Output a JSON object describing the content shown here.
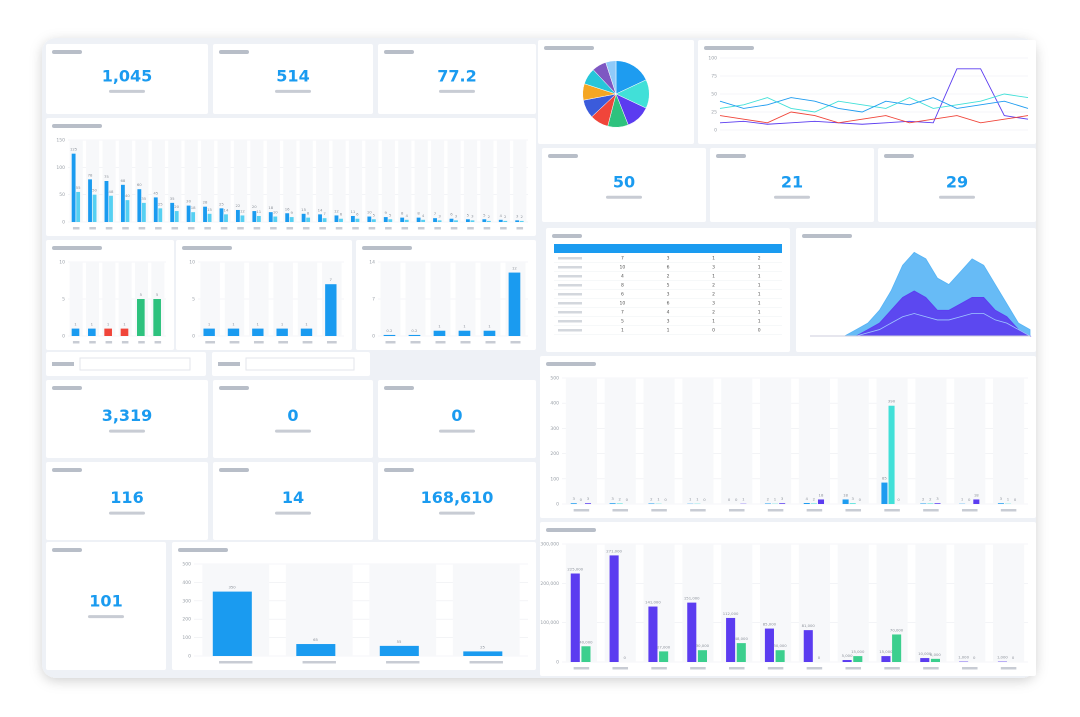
{
  "kpis": [
    "1,045",
    "514",
    "77.2",
    "50",
    "21",
    "29",
    "3,319",
    "0",
    "0",
    "116",
    "14",
    "168,610",
    "101"
  ],
  "charts": {
    "wide": {
      "type": "bar",
      "ylim": [
        0,
        150
      ],
      "yticks": [
        0,
        50,
        100,
        150
      ],
      "series": [
        {
          "color": "#1a9bf0",
          "values": [
            125,
            78,
            75,
            68,
            60,
            45,
            35,
            30,
            28,
            25,
            22,
            20,
            18,
            16,
            15,
            14,
            12,
            11,
            10,
            9,
            8,
            8,
            7,
            6,
            5,
            5,
            4,
            3
          ]
        },
        {
          "color": "#56d0f2",
          "values": [
            55,
            50,
            48,
            40,
            35,
            25,
            20,
            18,
            15,
            14,
            12,
            11,
            10,
            9,
            8,
            7,
            6,
            6,
            5,
            5,
            4,
            4,
            3,
            3,
            3,
            2,
            2,
            2
          ]
        }
      ]
    },
    "smallA": {
      "type": "bar",
      "ylim": [
        0,
        10
      ],
      "yticks": [
        0,
        5,
        10
      ],
      "series": [
        {
          "colors": [
            "#1a9bf0",
            "#1a9bf0",
            "#f0453a",
            "#f0453a",
            "#2ec27e",
            "#2ec27e"
          ],
          "values": [
            1,
            1,
            1,
            1,
            5,
            5
          ]
        }
      ]
    },
    "smallB": {
      "type": "bar",
      "ylim": [
        0,
        10
      ],
      "yticks": [
        0,
        5,
        10
      ],
      "series": [
        {
          "color": "#1a9bf0",
          "values": [
            1,
            1,
            1,
            1,
            1,
            7
          ]
        }
      ]
    },
    "smallC": {
      "type": "bar",
      "ylim": [
        0,
        14
      ],
      "yticks": [
        0,
        7,
        14
      ],
      "series": [
        {
          "color": "#1a9bf0",
          "values": [
            0.2,
            0.2,
            1,
            1,
            1,
            12
          ]
        }
      ]
    },
    "funnel": {
      "type": "bar",
      "ylim": [
        0,
        500
      ],
      "yticks": [
        0,
        100,
        200,
        300,
        400,
        500
      ],
      "series": [
        {
          "color": "#1a9bf0",
          "values": [
            350,
            65,
            55,
            25
          ]
        }
      ]
    },
    "pie": {
      "type": "pie",
      "values": [
        18,
        14,
        12,
        10,
        9,
        9,
        8,
        8,
        7,
        5
      ],
      "colors": [
        "#1e9cf0",
        "#41e0d8",
        "#5b3cf0",
        "#2ec27e",
        "#f0453a",
        "#3b5bdb",
        "#f5a623",
        "#26c6da",
        "#7e57c2",
        "#90caf9"
      ]
    },
    "trend": {
      "type": "line",
      "ylim": [
        0,
        100
      ],
      "yticks": [
        0,
        25,
        50,
        75,
        100
      ],
      "series": [
        {
          "color": "#5b3cf0",
          "values": [
            10,
            12,
            8,
            10,
            12,
            10,
            8,
            10,
            12,
            10,
            85,
            85,
            20,
            15
          ]
        },
        {
          "color": "#41e0d8",
          "values": [
            30,
            35,
            45,
            30,
            25,
            40,
            35,
            30,
            45,
            30,
            35,
            40,
            50,
            45
          ]
        },
        {
          "color": "#f0453a",
          "values": [
            20,
            15,
            10,
            25,
            20,
            10,
            15,
            20,
            10,
            15,
            20,
            10,
            15,
            20
          ]
        },
        {
          "color": "#1e9cf0",
          "values": [
            40,
            30,
            35,
            45,
            40,
            30,
            25,
            40,
            35,
            45,
            30,
            35,
            40,
            30
          ]
        }
      ]
    },
    "area": {
      "type": "area",
      "ylim": [
        0,
        14
      ],
      "yticks": [
        0,
        7,
        14
      ],
      "series": [
        {
          "color": "#56b4f5",
          "values": [
            0,
            0,
            0,
            0,
            1,
            2,
            4,
            7,
            11,
            13,
            12,
            9,
            8,
            10,
            12,
            11,
            8,
            5,
            2,
            1
          ]
        },
        {
          "color": "#5b3cf0",
          "values": [
            0,
            0,
            0,
            0,
            0,
            1,
            2,
            4,
            6,
            7,
            6,
            4,
            4,
            5,
            6,
            6,
            4,
            3,
            1,
            0
          ]
        },
        {
          "color": "#9fc8ff",
          "values": [
            0,
            0,
            0,
            0,
            0,
            0.5,
            1,
            2,
            3,
            3.5,
            3,
            2.5,
            2.5,
            3,
            3.5,
            3.5,
            2.5,
            2,
            1,
            0
          ]
        }
      ]
    },
    "dept": {
      "type": "bar",
      "ylim": [
        0,
        500
      ],
      "yticks": [
        0,
        100,
        200,
        300,
        400,
        500
      ],
      "series": [
        {
          "color": "#1e9cf0",
          "values": [
            3,
            3,
            2,
            1,
            0,
            2,
            4,
            18,
            85,
            2,
            1,
            3
          ]
        },
        {
          "color": "#41e0d8",
          "values": [
            0,
            2,
            1,
            1,
            0,
            1,
            2,
            3,
            390,
            2,
            0,
            1
          ]
        },
        {
          "color": "#5b3cf0",
          "values": [
            3,
            0,
            0,
            0,
            1,
            3,
            18,
            0,
            0,
            3,
            18,
            0
          ]
        }
      ]
    },
    "amount": {
      "type": "bar",
      "ylim": [
        0,
        300000
      ],
      "yticks": [
        0,
        {
          "value": 100000,
          "label": "100,000"
        },
        {
          "value": 200000,
          "label": "200,000"
        },
        {
          "value": 300000,
          "label": "300,000"
        }
      ],
      "series": [
        {
          "color": "#5b3cf0",
          "values": [
            225000,
            271000,
            141000,
            151000,
            112000,
            85000,
            81000,
            5000,
            15000,
            10000,
            1000,
            1000
          ],
          "value_labels": [
            "225,000",
            "271,000",
            "141,000",
            "151,000",
            "112,000",
            "85,000",
            "81,000",
            "5,000",
            "15,000",
            "10,000",
            "1,000",
            "1,000"
          ]
        },
        {
          "color": "#3ccf8e",
          "values": [
            40000,
            0,
            27000,
            30000,
            48000,
            30000,
            0,
            15000,
            70000,
            8000,
            0,
            0
          ],
          "value_labels": [
            "40,000",
            "0",
            "27,000",
            "30,000",
            "48,000",
            "30,000",
            "0",
            "15,000",
            "70,000",
            "8,000",
            "0",
            "0"
          ]
        }
      ]
    }
  },
  "table": {
    "rows": [
      [
        7,
        3,
        1,
        2
      ],
      [
        10,
        6,
        3,
        1
      ],
      [
        4,
        2,
        1,
        1
      ],
      [
        8,
        5,
        2,
        1
      ],
      [
        6,
        3,
        2,
        1
      ],
      [
        10,
        6,
        3,
        1
      ],
      [
        7,
        4,
        2,
        1
      ],
      [
        5,
        3,
        1,
        1
      ],
      [
        1,
        1,
        0,
        0
      ]
    ]
  }
}
